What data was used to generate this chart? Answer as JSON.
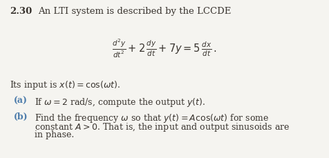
{
  "background_color": "#f5f4f0",
  "problem_number": "2.30",
  "title_text": "An LTI system is described by the LCCDE",
  "equation": "$\\frac{d^2y}{dt^2} + 2\\,\\frac{dy}{dt} + 7y = 5\\,\\frac{dx}{dt}\\,.$",
  "input_text": "Its input is $x(t) = \\cos(\\omega t)$.",
  "part_a_label": "(a)",
  "part_a_text": "If $\\omega = 2$ rad/s, compute the output $y(t)$.",
  "part_b_label": "(b)",
  "part_b_line1": "Find the frequency $\\omega$ so that $y(t) = A\\cos(\\omega t)$ for some",
  "part_b_line2": "constant $A > 0$. That is, the input and output sinusoids are",
  "part_b_line3": "in phase.",
  "text_color": "#3a3530",
  "label_color": "#4a7aaa",
  "fontsize_number": 9.5,
  "fontsize_title": 9.5,
  "fontsize_eq": 10.5,
  "fontsize_body": 9.0
}
